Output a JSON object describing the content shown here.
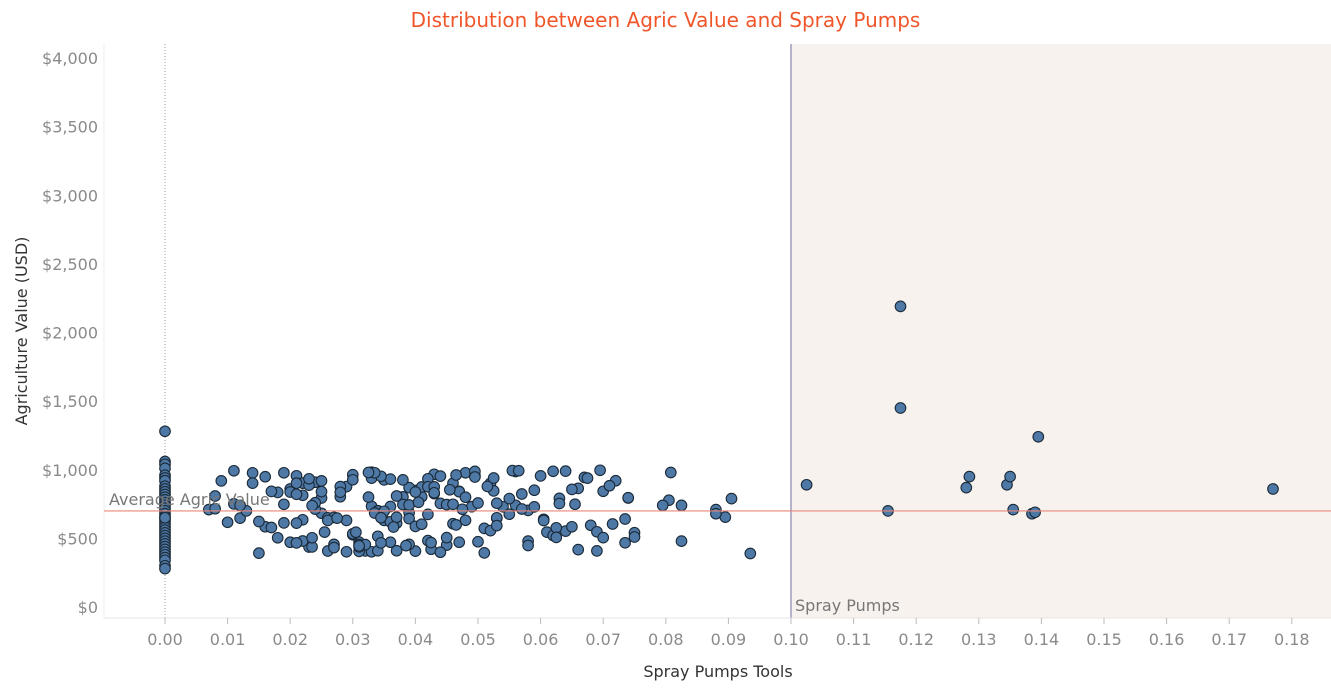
{
  "chart_data": {
    "type": "scatter",
    "title": "Distribution between Agric Value and Spray Pumps",
    "xlabel": "Spray Pumps Tools",
    "ylabel": "Agriculture Value (USD)",
    "xlim": [
      -0.01,
      0.185
    ],
    "ylim": [
      -80,
      4100
    ],
    "x_ticks": [
      0.0,
      0.01,
      0.02,
      0.03,
      0.04,
      0.05,
      0.06,
      0.07,
      0.08,
      0.09,
      0.1,
      0.11,
      0.12,
      0.13,
      0.14,
      0.15,
      0.16,
      0.17,
      0.18
    ],
    "x_tick_labels": [
      "0.00",
      "0.01",
      "0.02",
      "0.03",
      "0.04",
      "0.05",
      "0.06",
      "0.07",
      "0.08",
      "0.09",
      "0.10",
      "0.11",
      "0.12",
      "0.13",
      "0.14",
      "0.15",
      "0.16",
      "0.17",
      "0.18"
    ],
    "y_ticks": [
      0,
      500,
      1000,
      1500,
      2000,
      2500,
      3000,
      3500,
      4000
    ],
    "y_tick_labels": [
      "$0",
      "$500",
      "$1,000",
      "$1,500",
      "$2,000",
      "$2,500",
      "$3,000",
      "$3,500",
      "$4,000"
    ],
    "grid": false,
    "reference_line": {
      "label": "Average Agric Value",
      "y": 700,
      "color": "#e8877a"
    },
    "region": {
      "label": "Spray Pumps",
      "x_start": 0.1,
      "fill": "#f8f2ee",
      "edge": "#b7b2cc"
    },
    "colors": {
      "point_fill": "#4e79a7",
      "point_stroke": "#1b2a38",
      "title": "#f0562a",
      "zero_line": "#9a9a9a"
    },
    "x": [
      0,
      0,
      0,
      0,
      0,
      0,
      0,
      0,
      0,
      0,
      0,
      0,
      0,
      0,
      0,
      0,
      0,
      0,
      0,
      0,
      0,
      0,
      0,
      0,
      0,
      0,
      0,
      0,
      0,
      0,
      0,
      0,
      0,
      0,
      0,
      0,
      0,
      0,
      0.007,
      0.008,
      0.009,
      0.01,
      0.011,
      0.012,
      0.013,
      0.008,
      0.011,
      0.014,
      0.016,
      0.018,
      0.015,
      0.017,
      0.019,
      0.02,
      0.021,
      0.022,
      0.023,
      0.024,
      0.012,
      0.014,
      0.016,
      0.019,
      0.02,
      0.021,
      0.022,
      0.023,
      0.015,
      0.017,
      0.018,
      0.02,
      0.025,
      0.022,
      0.024,
      0.026,
      0.027,
      0.028,
      0.029,
      0.03,
      0.031,
      0.032,
      0.033,
      0.034,
      0.035,
      0.036,
      0.037,
      0.038,
      0.039,
      0.04,
      0.041,
      0.042,
      0.025,
      0.027,
      0.029,
      0.031,
      0.033,
      0.035,
      0.037,
      0.039,
      0.041,
      0.043,
      0.026,
      0.028,
      0.03,
      0.032,
      0.034,
      0.036,
      0.038,
      0.04,
      0.042,
      0.044,
      0.021,
      0.023,
      0.026,
      0.029,
      0.031,
      0.034,
      0.036,
      0.039,
      0.042,
      0.044,
      0.046,
      0.021,
      0.022,
      0.025,
      0.028,
      0.031,
      0.034,
      0.037,
      0.04,
      0.043,
      0.047,
      0.024,
      0.027,
      0.03,
      0.033,
      0.036,
      0.039,
      0.042,
      0.045,
      0.048,
      0.019,
      0.021,
      0.025,
      0.03,
      0.031,
      0.0325,
      0.0335,
      0.035,
      0.0305,
      0.0345,
      0.037,
      0.038,
      0.039,
      0.04,
      0.041,
      0.043,
      0.045,
      0.046,
      0.047,
      0.048,
      0.049,
      0.0495,
      0.05,
      0.051,
      0.052,
      0.053,
      0.054,
      0.055,
      0.056,
      0.057,
      0.058,
      0.059,
      0.06,
      0.045,
      0.046,
      0.047,
      0.048,
      0.05,
      0.051,
      0.052,
      0.053,
      0.055,
      0.056,
      0.057,
      0.058,
      0.059,
      0.061,
      0.062,
      0.063,
      0.064,
      0.065,
      0.066,
      0.067,
      0.068,
      0.069,
      0.07,
      0.072,
      0.074,
      0.075,
      0.0525,
      0.053,
      0.0495,
      0.0555,
      0.058,
      0.0605,
      0.0625,
      0.065,
      0.0675,
      0.069,
      0.062,
      0.063,
      0.066,
      0.07,
      0.0715,
      0.0735,
      0.075,
      0.074,
      0.064,
      0.0235,
      0.0255,
      0.0275,
      0.0345,
      0.0365,
      0.0385,
      0.0405,
      0.0425,
      0.044,
      0.0455,
      0.0475,
      0.0235,
      0.033,
      0.0335,
      0.0425,
      0.0465,
      0.0515,
      0.0565,
      0.0605,
      0.0625,
      0.071,
      0.0735,
      0.0325,
      0.0235,
      0.0525,
      0.053,
      0.0495,
      0.0345,
      0.043,
      0.0655,
      0.0895,
      0.0805,
      0.0695,
      0.0465,
      0.0808,
      0.0825,
      0.088,
      0.088,
      0.0905,
      0.0935,
      0.0825,
      0.0795,
      0.1025,
      0.1155,
      0.1175,
      0.1175,
      0.128,
      0.1285,
      0.1345,
      0.135,
      0.1355,
      0.1385,
      0.139,
      0.1395,
      0.177
    ]
  }
}
